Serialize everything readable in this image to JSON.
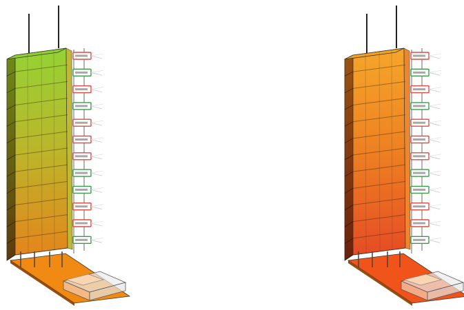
{
  "scene": {
    "models": [
      {
        "id": "tower-green",
        "palette": {
          "top": "#8fd12a",
          "mid": "#b9b21e",
          "bottom": "#e37f12",
          "side": "#5e6a12",
          "base": "#f08a12",
          "spine": "#6a6a6a"
        },
        "floor_labels": [
          "red",
          "green",
          "red",
          "green",
          "red",
          "red",
          "red",
          "green",
          "green",
          "red",
          "red",
          "green"
        ]
      },
      {
        "id": "tower-orange",
        "palette": {
          "top": "#f5a21f",
          "mid": "#ee7a16",
          "bottom": "#e4431a",
          "side": "#8a3d10",
          "base": "#f0541a",
          "spine": "#6a6a6a"
        },
        "floor_labels": [
          "red",
          "green",
          "red",
          "green",
          "red",
          "red",
          "red",
          "green",
          "green",
          "red",
          "red",
          "green"
        ]
      }
    ],
    "colors": {
      "label_red": "#e04a3f",
      "label_green": "#3a9a48",
      "background": "#ffffff",
      "outline": "#333333"
    }
  }
}
